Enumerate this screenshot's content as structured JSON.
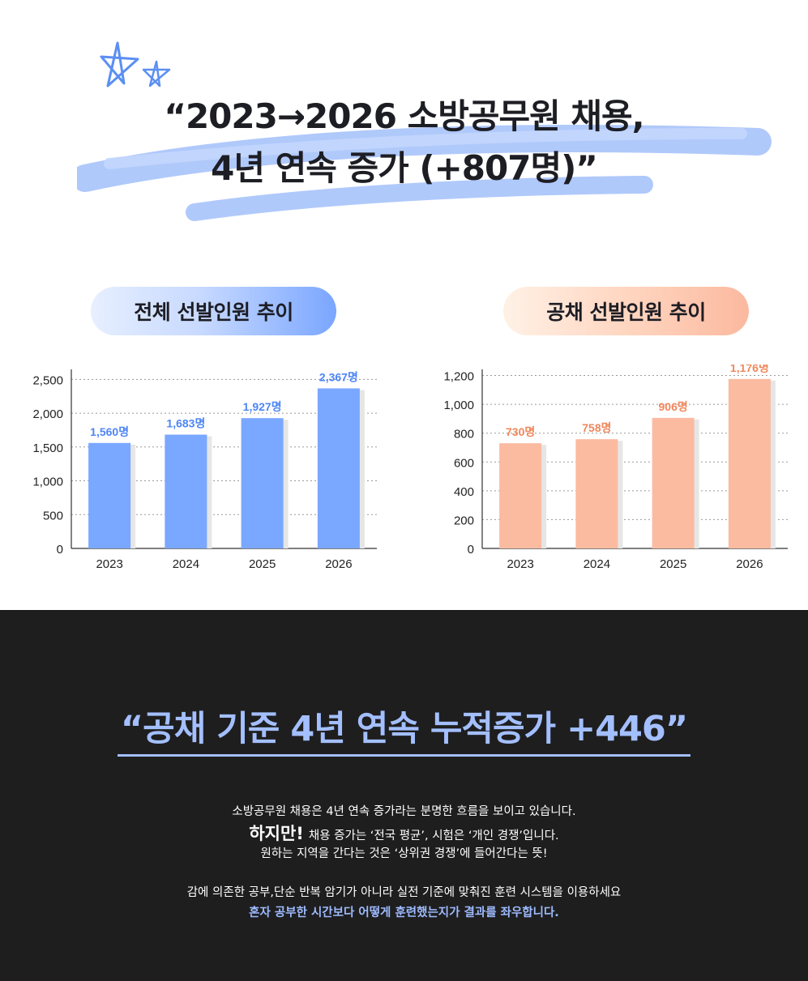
{
  "headline": {
    "line1": "“2023→2026 소방공무원 채용,",
    "line2": "4년 연속 증가 (+807명)”"
  },
  "colors": {
    "blue_bar": "#7aa7ff",
    "blue_label": "#4d86f5",
    "orange_bar": "#fbbba1",
    "orange_label": "#f0875c",
    "dark_bg": "#1e1e1f",
    "accent_text": "#a3bfff"
  },
  "pills": {
    "left": "전체 선발인원 추이",
    "right": "공채 선발인원 추이"
  },
  "chart_data": [
    {
      "type": "bar",
      "title": "전체 선발인원 추이",
      "categories": [
        "2023",
        "2024",
        "2025",
        "2026"
      ],
      "values": [
        1560,
        1683,
        1927,
        2367
      ],
      "data_labels": [
        "1,560명",
        "1,683명",
        "1,927명",
        "2,367명"
      ],
      "ylim": [
        0,
        2600
      ],
      "yticks": [
        0,
        500,
        1000,
        1500,
        2000,
        2500
      ],
      "ytick_labels": [
        "0",
        "500",
        "1,000",
        "1,500",
        "2,000",
        "2,500"
      ],
      "grid": true,
      "xlabel": "",
      "ylabel": ""
    },
    {
      "type": "bar",
      "title": "공채 선발인원 추이",
      "categories": [
        "2023",
        "2024",
        "2025",
        "2026"
      ],
      "values": [
        730,
        758,
        906,
        1176
      ],
      "data_labels": [
        "730명",
        "758명",
        "906명",
        "1,176명"
      ],
      "ylim": [
        0,
        1220
      ],
      "yticks": [
        0,
        200,
        400,
        600,
        800,
        1000,
        1200
      ],
      "ytick_labels": [
        "0",
        "200",
        "400",
        "600",
        "800",
        "1,000",
        "1,200"
      ],
      "grid": true,
      "xlabel": "",
      "ylabel": ""
    }
  ],
  "bottom": {
    "quote": "“공채 기준 4년 연속 누적증가 +446”",
    "p1": "소방공무원 채용은 4년 연속 증가라는 분명한 흐름을 보이고 있습니다.",
    "p2_bold": "하지만!",
    "p2_rest": "채용 증가는 ‘전국 평균’, 시험은 ‘개인 경쟁’입니다.",
    "p3": "원하는 지역을 간다는 것은 ‘상위권 경쟁’에 들어간다는 뜻!",
    "p4": "감에 의존한 공부,단순 반복 암기가 아니라 실전 기준에 맞춰진 훈련 시스템을 이용하세요",
    "p5": "혼자 공부한 시간보다 어떻게 훈련했는지가 결과를 좌우합니다."
  }
}
